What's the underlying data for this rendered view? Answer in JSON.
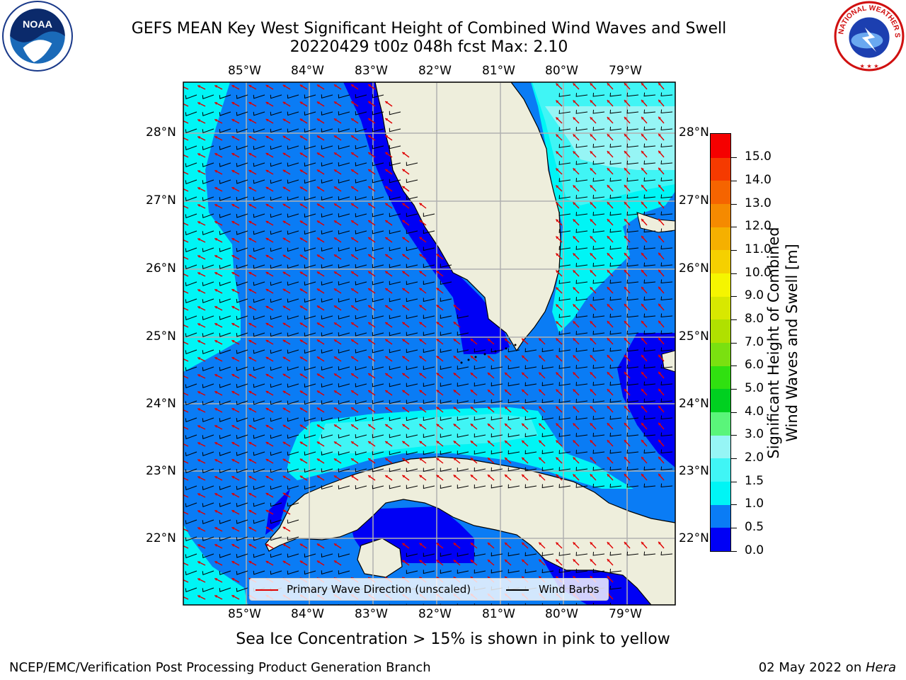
{
  "title_line1": "GEFS MEAN Key West Significant Height of Combined Wind Waves and Swell",
  "title_line2": "20220429 t00z 048h fcst   Max: 2.10",
  "logos": {
    "left": {
      "name": "noaa-logo",
      "text": "NOAA"
    },
    "right": {
      "name": "nws-logo",
      "text": "NATIONAL WEATHER SERVICE"
    }
  },
  "longitude_ticks": [
    "85°W",
    "84°W",
    "83°W",
    "82°W",
    "81°W",
    "80°W",
    "79°W"
  ],
  "latitude_ticks": [
    "28°N",
    "27°N",
    "26°N",
    "25°N",
    "24°N",
    "23°N",
    "22°N"
  ],
  "colorbar": {
    "label": "Significant Height of Combined Wind Waves and Swell [m]",
    "label_line1": "Significant Height of Combined",
    "label_line2": "Wind Waves and Swell [m]",
    "ticks": [
      "0.0",
      "0.5",
      "1.0",
      "1.5",
      "2.0",
      "3.0",
      "4.0",
      "5.0",
      "6.0",
      "7.0",
      "8.0",
      "9.0",
      "10.0",
      "11.0",
      "12.0",
      "13.0",
      "14.0",
      "15.0"
    ],
    "colors": [
      "#0000f5",
      "#0a7cf5",
      "#00f5f5",
      "#40f5f5",
      "#96f5f5",
      "#5af57a",
      "#00d020",
      "#30e010",
      "#7ae010",
      "#b0e000",
      "#d8e800",
      "#f5f500",
      "#f5d000",
      "#f5b000",
      "#f58a00",
      "#f56400",
      "#f53a00",
      "#f50000"
    ]
  },
  "legend": {
    "wave_label": "Primary Wave Direction (unscaled)",
    "wave_color": "#e00000",
    "wind_label": "Wind Barbs",
    "wind_color": "#000000"
  },
  "sea_ice_note": "Sea Ice Concentration > 15% is shown in pink to yellow",
  "footer_left": "NCEP/EMC/Verification Post Processing Product Generation Branch",
  "footer_right_prefix": "02 May 2022 on ",
  "footer_right_host": "Hera",
  "colors": {
    "land": "#eeeedc",
    "wave_0_0_5": "#0000f5",
    "wave_0_5_1_0": "#0a7cf5",
    "wave_1_0_1_5": "#00f5f5",
    "wave_1_5_2_0": "#40f5f5",
    "wave_2_0_3_0": "#96f5f5",
    "grid": "#b0b0b0"
  }
}
